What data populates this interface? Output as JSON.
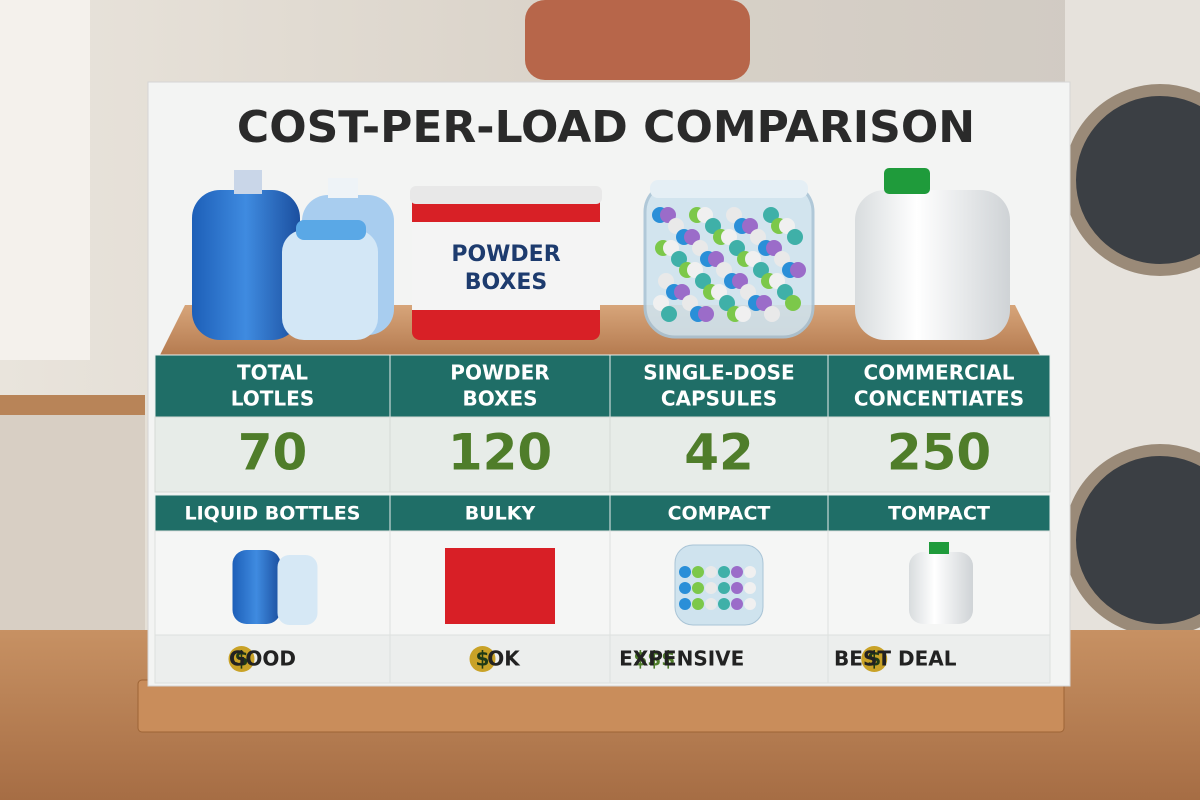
{
  "title": "COST-PER-LOAD COMPARISON",
  "product_label": [
    "POWDER",
    "BOXES"
  ],
  "columns": [
    {
      "header": [
        "TOTAL",
        "LOTLES"
      ],
      "value": 70,
      "size": "LIQUID BOTTLES",
      "rating_symbol": "$",
      "rating": "GOOD"
    },
    {
      "header": [
        "POWDER",
        "BOXES"
      ],
      "value": 120,
      "size": "BULKY",
      "rating_symbol": "$",
      "rating": "OK"
    },
    {
      "header": [
        "SINGLE-DOSE",
        "CAPSULES"
      ],
      "value": 42,
      "size": "COMPACT",
      "rating_symbol": "$$$",
      "rating": "EXPENSIVE"
    },
    {
      "header": [
        "COMMERCIAL",
        "CONCENTIATES"
      ],
      "value": 250,
      "size": "TOMPACT",
      "rating_symbol": "$",
      "rating": "BEST DEAL"
    }
  ]
}
